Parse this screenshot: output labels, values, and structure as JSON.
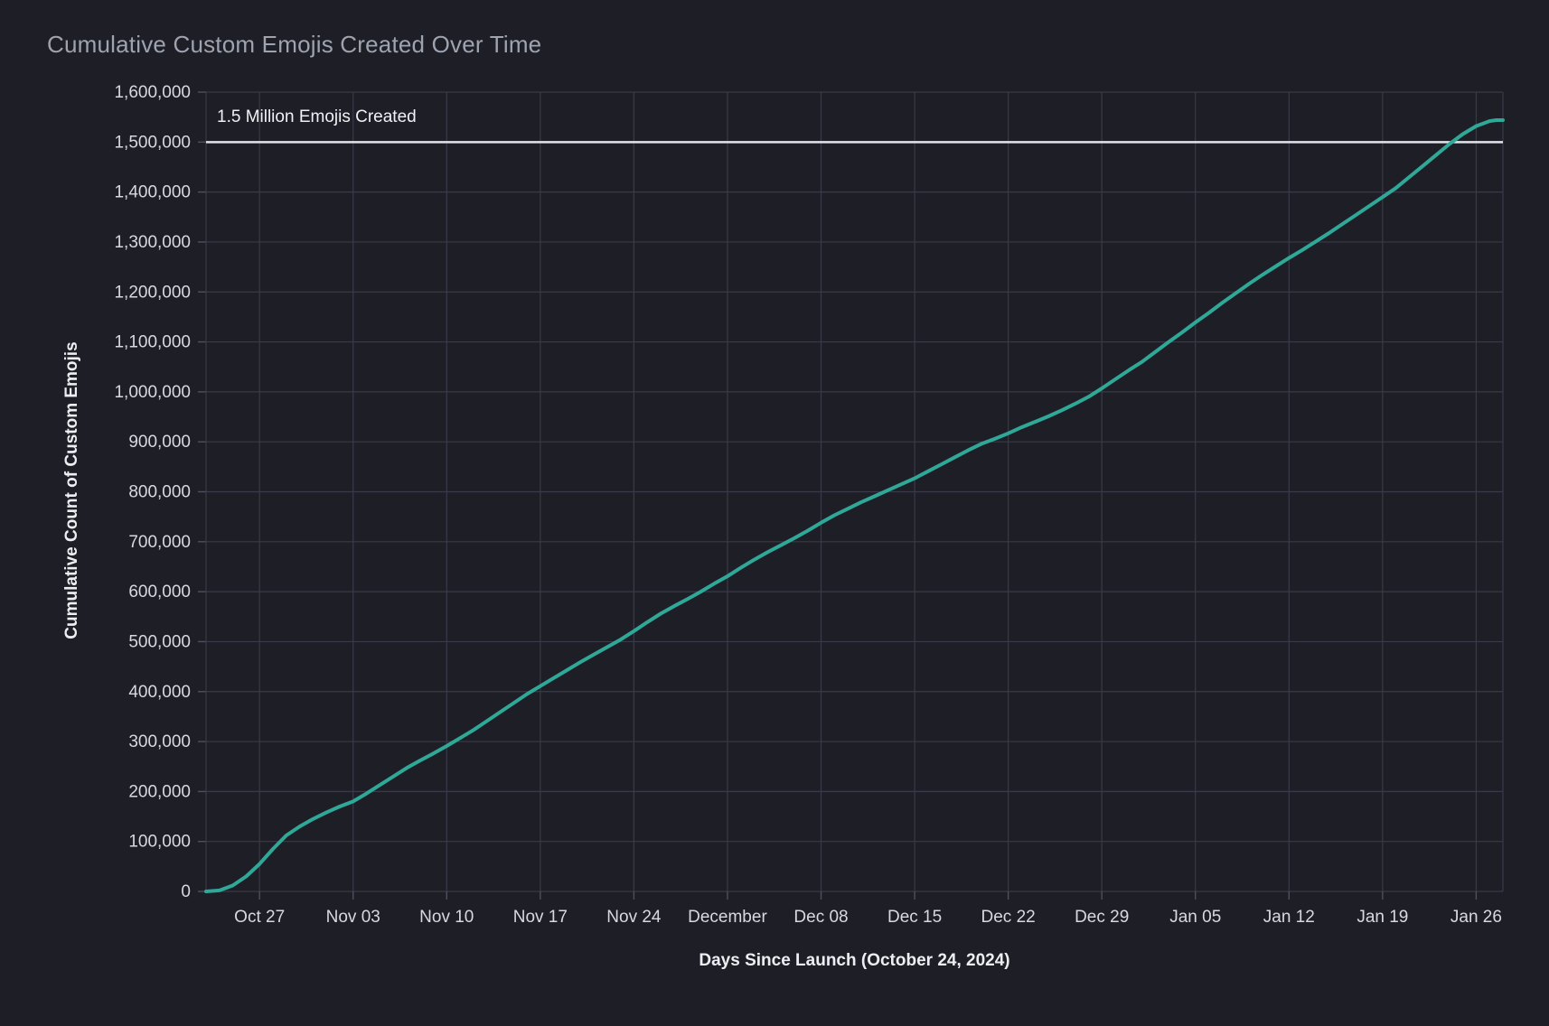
{
  "title": "Cumulative Custom Emojis Created Over Time",
  "colors": {
    "background": "#1e1e27",
    "grid": "#3a3a49",
    "tick_mark": "#4f4f5e",
    "tick_text": "#d8d9e0",
    "title_text": "#9da3af",
    "axis_title_text": "#edeef2",
    "annotation_text": "#f0f1f5",
    "threshold_line": "#e3e4ea",
    "series_line": "#2fa898"
  },
  "chart_data": {
    "type": "line",
    "title": "Cumulative Custom Emojis Created Over Time",
    "xlabel": "Days Since Launch (October 24, 2024)",
    "ylabel": "Cumulative Count of Custom Emojis",
    "x_unit": "days since launch (Oct 24, 2024 = day 0)",
    "x_domain_days": [
      -1,
      96
    ],
    "ylim": [
      0,
      1600000
    ],
    "grid": true,
    "legend": false,
    "x_ticks": [
      {
        "day": 3,
        "label": "Oct 27"
      },
      {
        "day": 10,
        "label": "Nov 03"
      },
      {
        "day": 17,
        "label": "Nov 10"
      },
      {
        "day": 24,
        "label": "Nov 17"
      },
      {
        "day": 31,
        "label": "Nov 24"
      },
      {
        "day": 38,
        "label": "December"
      },
      {
        "day": 45,
        "label": "Dec 08"
      },
      {
        "day": 52,
        "label": "Dec 15"
      },
      {
        "day": 59,
        "label": "Dec 22"
      },
      {
        "day": 66,
        "label": "Dec 29"
      },
      {
        "day": 73,
        "label": "Jan 05"
      },
      {
        "day": 80,
        "label": "Jan 12"
      },
      {
        "day": 87,
        "label": "Jan 19"
      },
      {
        "day": 94,
        "label": "Jan 26"
      }
    ],
    "y_ticks": [
      {
        "value": 0,
        "label": "0"
      },
      {
        "value": 100000,
        "label": "100,000"
      },
      {
        "value": 200000,
        "label": "200,000"
      },
      {
        "value": 300000,
        "label": "300,000"
      },
      {
        "value": 400000,
        "label": "400,000"
      },
      {
        "value": 500000,
        "label": "500,000"
      },
      {
        "value": 600000,
        "label": "600,000"
      },
      {
        "value": 700000,
        "label": "700,000"
      },
      {
        "value": 800000,
        "label": "800,000"
      },
      {
        "value": 900000,
        "label": "900,000"
      },
      {
        "value": 1000000,
        "label": "1,000,000"
      },
      {
        "value": 1100000,
        "label": "1,100,000"
      },
      {
        "value": 1200000,
        "label": "1,200,000"
      },
      {
        "value": 1300000,
        "label": "1,300,000"
      },
      {
        "value": 1400000,
        "label": "1,400,000"
      },
      {
        "value": 1500000,
        "label": "1,500,000"
      },
      {
        "value": 1600000,
        "label": "1,600,000"
      }
    ],
    "threshold_line": {
      "value": 1500000,
      "label": "1.5 Million Emojis Created"
    },
    "series": [
      {
        "name": "Cumulative Custom Emojis",
        "points": [
          [
            -1,
            0
          ],
          [
            0,
            2000
          ],
          [
            1,
            12000
          ],
          [
            2,
            30000
          ],
          [
            3,
            55000
          ],
          [
            4,
            85000
          ],
          [
            5,
            112000
          ],
          [
            6,
            130000
          ],
          [
            7,
            145000
          ],
          [
            8,
            158000
          ],
          [
            9,
            170000
          ],
          [
            10,
            180000
          ],
          [
            11,
            196000
          ],
          [
            12,
            213000
          ],
          [
            13,
            230000
          ],
          [
            14,
            247000
          ],
          [
            15,
            262000
          ],
          [
            16,
            276000
          ],
          [
            17,
            291000
          ],
          [
            18,
            307000
          ],
          [
            19,
            323000
          ],
          [
            20,
            341000
          ],
          [
            21,
            359000
          ],
          [
            22,
            377000
          ],
          [
            23,
            395000
          ],
          [
            24,
            411000
          ],
          [
            25,
            427000
          ],
          [
            26,
            443000
          ],
          [
            27,
            459000
          ],
          [
            28,
            474000
          ],
          [
            29,
            489000
          ],
          [
            30,
            504000
          ],
          [
            31,
            521000
          ],
          [
            32,
            539000
          ],
          [
            33,
            556000
          ],
          [
            34,
            571000
          ],
          [
            35,
            585000
          ],
          [
            36,
            600000
          ],
          [
            37,
            616000
          ],
          [
            38,
            631000
          ],
          [
            39,
            648000
          ],
          [
            40,
            664000
          ],
          [
            41,
            679000
          ],
          [
            42,
            693000
          ],
          [
            43,
            707000
          ],
          [
            44,
            722000
          ],
          [
            45,
            738000
          ],
          [
            46,
            753000
          ],
          [
            47,
            766000
          ],
          [
            48,
            779000
          ],
          [
            49,
            791000
          ],
          [
            50,
            803000
          ],
          [
            51,
            815000
          ],
          [
            52,
            827000
          ],
          [
            53,
            841000
          ],
          [
            54,
            855000
          ],
          [
            55,
            869000
          ],
          [
            56,
            883000
          ],
          [
            57,
            896000
          ],
          [
            58,
            906000
          ],
          [
            59,
            917000
          ],
          [
            60,
            929000
          ],
          [
            61,
            940000
          ],
          [
            62,
            951000
          ],
          [
            63,
            963000
          ],
          [
            64,
            976000
          ],
          [
            65,
            990000
          ],
          [
            66,
            1007000
          ],
          [
            67,
            1025000
          ],
          [
            68,
            1043000
          ],
          [
            69,
            1060000
          ],
          [
            70,
            1080000
          ],
          [
            71,
            1100000
          ],
          [
            72,
            1119000
          ],
          [
            73,
            1139000
          ],
          [
            74,
            1158000
          ],
          [
            75,
            1178000
          ],
          [
            76,
            1197000
          ],
          [
            77,
            1216000
          ],
          [
            78,
            1234000
          ],
          [
            79,
            1251000
          ],
          [
            80,
            1268000
          ],
          [
            81,
            1284000
          ],
          [
            82,
            1301000
          ],
          [
            83,
            1318000
          ],
          [
            84,
            1336000
          ],
          [
            85,
            1354000
          ],
          [
            86,
            1372000
          ],
          [
            87,
            1390000
          ],
          [
            88,
            1408000
          ],
          [
            89,
            1430000
          ],
          [
            90,
            1452000
          ],
          [
            91,
            1474000
          ],
          [
            92,
            1496000
          ],
          [
            93,
            1516000
          ],
          [
            94,
            1532000
          ],
          [
            95,
            1542000
          ],
          [
            95.5,
            1544000
          ],
          [
            96,
            1544000
          ]
        ]
      }
    ]
  }
}
